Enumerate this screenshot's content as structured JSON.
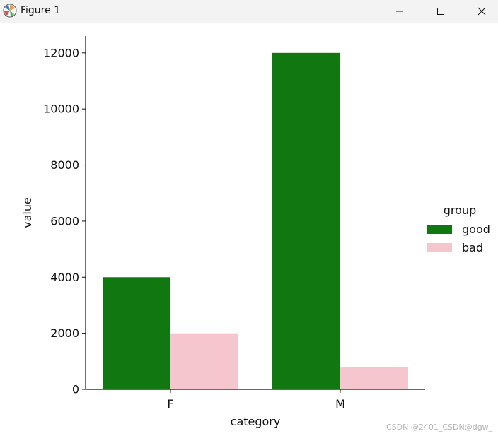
{
  "window": {
    "title": "Figure 1",
    "buttons": {
      "minimize_icon": "minimize-icon",
      "maximize_icon": "maximize-icon",
      "close_icon": "close-icon"
    }
  },
  "chart_data": {
    "type": "bar",
    "categories": [
      "F",
      "M"
    ],
    "series": [
      {
        "name": "good",
        "color": "#117811",
        "values": [
          4000,
          12000
        ]
      },
      {
        "name": "bad",
        "color": "#f6c6cf",
        "values": [
          2000,
          800
        ]
      }
    ],
    "xlabel": "category",
    "ylabel": "value",
    "ylim": [
      0,
      12600
    ],
    "yticks": [
      0,
      2000,
      4000,
      6000,
      8000,
      10000,
      12000
    ],
    "legend": {
      "title": "group",
      "placement": "right"
    },
    "grid": false
  },
  "watermark": "CSDN @2401_CSDN@dgw_"
}
